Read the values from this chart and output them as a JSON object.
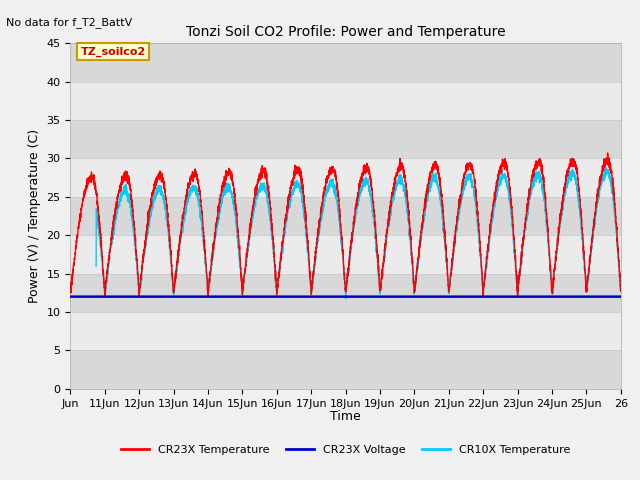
{
  "title": "Tonzi Soil CO2 Profile: Power and Temperature",
  "subtitle": "No data for f_T2_BattV",
  "xlabel": "Time",
  "ylabel": "Power (V) / Temperature (C)",
  "ylim": [
    0,
    45
  ],
  "yticks": [
    0,
    5,
    10,
    15,
    20,
    25,
    30,
    35,
    40,
    45
  ],
  "x_labels": [
    "Jun",
    "11Jun",
    "12Jun",
    "13Jun",
    "14Jun",
    "15Jun",
    "16Jun",
    "17Jun",
    "18Jun",
    "19Jun",
    "20Jun",
    "21Jun",
    "22Jun",
    "23Jun",
    "24Jun",
    "25Jun",
    "26"
  ],
  "legend_labels": [
    "CR23X Temperature",
    "CR23X Voltage",
    "CR10X Temperature"
  ],
  "cr23x_color": "#ff0000",
  "cr10x_color": "#00ccff",
  "voltage_color": "#0000cc",
  "voltage_value": 12.0,
  "bg_color": "#f0f0f0",
  "band_colors": [
    "#e8e8e8",
    "#d8d8d8"
  ],
  "annotation_text": "TZ_soilco2",
  "annotation_bg": "#ffffcc",
  "annotation_border": "#cc9900",
  "title_fontsize": 10,
  "axis_fontsize": 8,
  "subtitle_fontsize": 8
}
